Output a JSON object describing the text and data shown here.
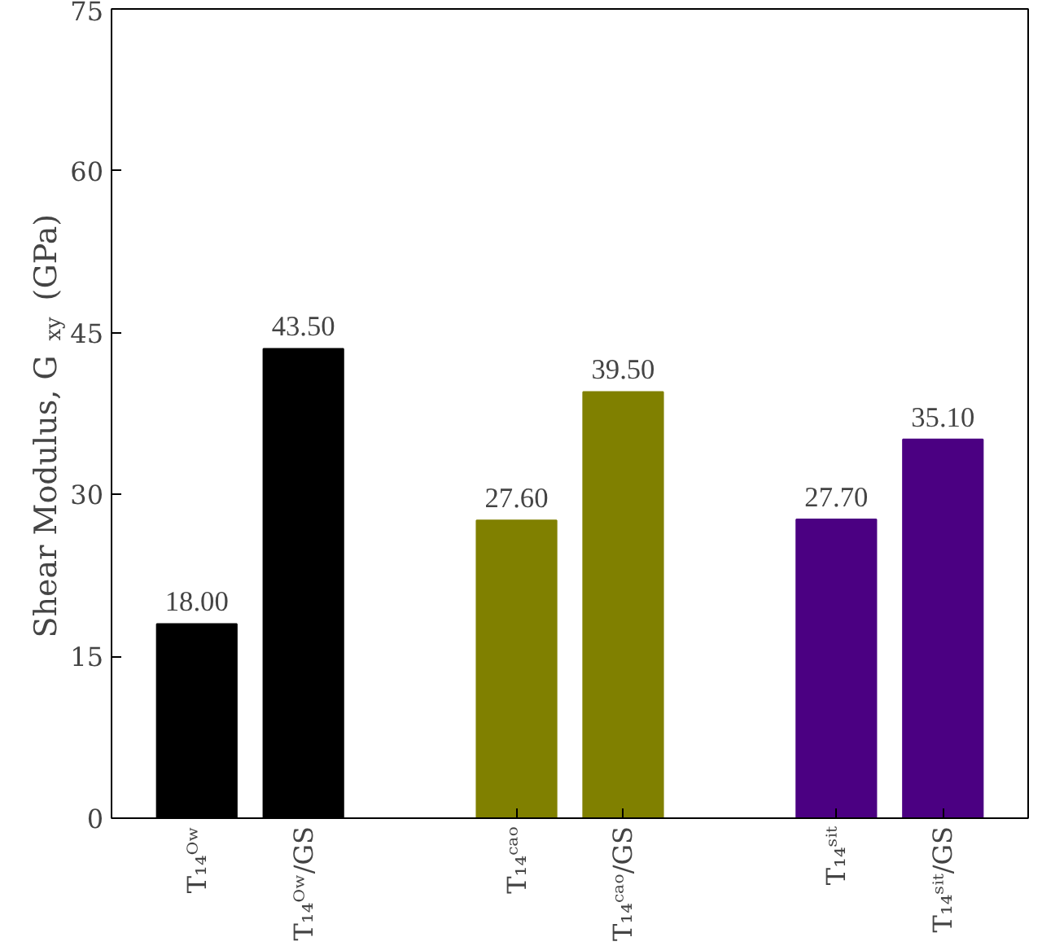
{
  "chart_data": {
    "type": "bar",
    "ylabel": "Shear Modulus, G$_{xy}$ (GPa)",
    "categories": [
      "T₁₄ᴼʷ",
      "T₁₄ᴼʷ/GS",
      null,
      "T₁₄ᶜᵃᵒ",
      "T₁₄ᶜᵃᵒ/GS",
      null,
      "T₁₄ˢⁱᵗ",
      "T₁₄ˢⁱᵗ/GS"
    ],
    "values": [
      18.0,
      43.5,
      null,
      27.6,
      39.5,
      null,
      27.7,
      35.1
    ],
    "colors": [
      "#000000",
      "#000000",
      null,
      "#808000",
      "#808000",
      null,
      "#4b0082",
      "#4b0082"
    ],
    "ylim": [
      0,
      75
    ],
    "yticks": [
      0,
      15,
      30,
      45,
      60,
      75
    ],
    "value_labels": [
      "18.00",
      "43.50",
      null,
      "27.60",
      "39.50",
      null,
      "27.70",
      "35.10"
    ],
    "grid": false
  }
}
